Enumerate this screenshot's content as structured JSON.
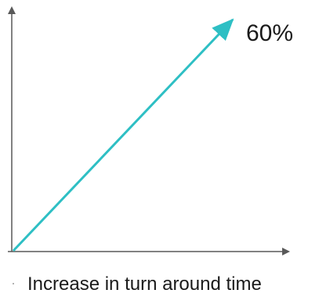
{
  "chart_data": {
    "type": "line",
    "xlabel": "Increase in turn around time",
    "ylabel": "",
    "annotation": "60%",
    "grid": false,
    "colors": {
      "series": "#2ebfc4",
      "axis": "#595959",
      "text": "#1a1a1a"
    }
  }
}
